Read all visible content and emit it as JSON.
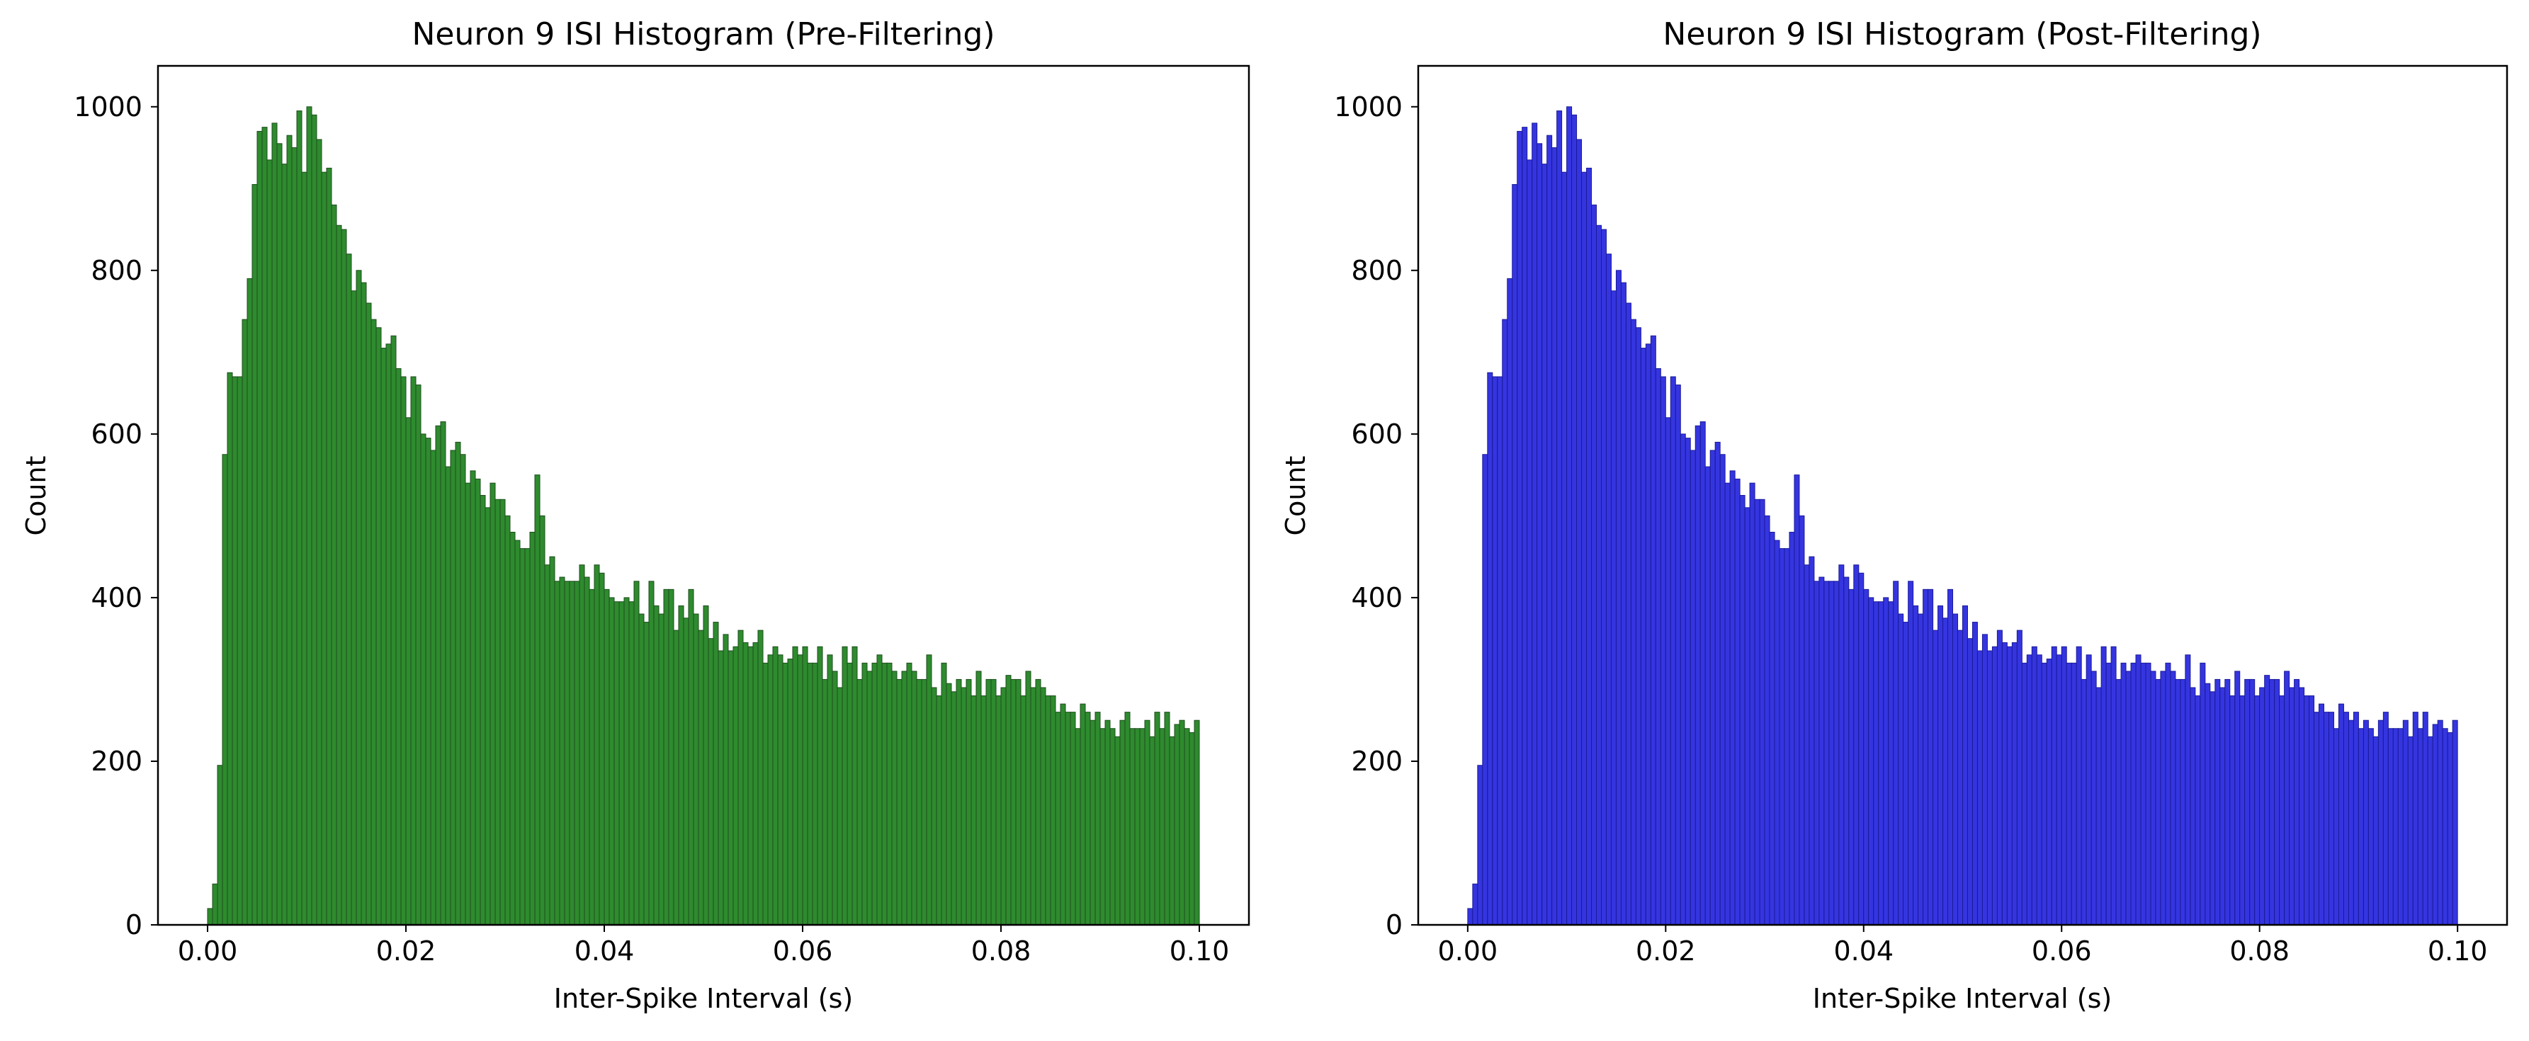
{
  "chart_data": [
    {
      "type": "bar",
      "title": "Neuron 9 ISI Histogram (Pre-Filtering)",
      "xlabel": "Inter-Spike Interval (s)",
      "ylabel": "Count",
      "xlim": [
        -0.005,
        0.105
      ],
      "ylim": [
        0,
        1050
      ],
      "x_ticks": [
        "0.00",
        "0.02",
        "0.04",
        "0.06",
        "0.08",
        "0.10"
      ],
      "y_ticks": [
        "0",
        "200",
        "400",
        "600",
        "800",
        "1000"
      ],
      "bin_range": [
        0,
        0.1
      ],
      "bin_count": 200,
      "fill_color": "#2e8b2e",
      "edge_color": "#1d4d1d",
      "values": [
        20,
        50,
        195,
        575,
        675,
        670,
        670,
        740,
        790,
        905,
        970,
        975,
        935,
        980,
        955,
        930,
        965,
        950,
        995,
        920,
        1000,
        990,
        960,
        920,
        925,
        880,
        855,
        850,
        820,
        775,
        800,
        785,
        760,
        740,
        730,
        705,
        710,
        720,
        680,
        670,
        620,
        670,
        660,
        600,
        595,
        580,
        610,
        615,
        560,
        580,
        590,
        575,
        540,
        555,
        545,
        525,
        510,
        540,
        520,
        520,
        500,
        480,
        470,
        460,
        460,
        480,
        550,
        500,
        440,
        450,
        420,
        425,
        420,
        420,
        420,
        440,
        425,
        410,
        440,
        430,
        410,
        400,
        395,
        395,
        400,
        395,
        420,
        380,
        370,
        420,
        390,
        380,
        410,
        410,
        360,
        390,
        375,
        410,
        380,
        360,
        390,
        350,
        370,
        335,
        355,
        335,
        340,
        360,
        345,
        340,
        345,
        360,
        320,
        330,
        340,
        330,
        320,
        325,
        340,
        330,
        340,
        320,
        320,
        340,
        300,
        330,
        310,
        290,
        340,
        320,
        340,
        300,
        320,
        310,
        320,
        330,
        320,
        320,
        310,
        300,
        310,
        320,
        310,
        300,
        300,
        330,
        290,
        280,
        320,
        295,
        285,
        300,
        290,
        300,
        280,
        310,
        280,
        300,
        300,
        280,
        290,
        305,
        300,
        300,
        280,
        310,
        290,
        300,
        290,
        280,
        280,
        260,
        270,
        260,
        260,
        240,
        270,
        260,
        250,
        260,
        240,
        250,
        240,
        230,
        250,
        260,
        240,
        240,
        240,
        250,
        230,
        260,
        240,
        260,
        230,
        245,
        250,
        240,
        235,
        250
      ]
    },
    {
      "type": "bar",
      "title": "Neuron 9 ISI Histogram (Post-Filtering)",
      "xlabel": "Inter-Spike Interval (s)",
      "ylabel": "Count",
      "xlim": [
        -0.005,
        0.105
      ],
      "ylim": [
        0,
        1050
      ],
      "x_ticks": [
        "0.00",
        "0.02",
        "0.04",
        "0.06",
        "0.08",
        "0.10"
      ],
      "y_ticks": [
        "0",
        "200",
        "400",
        "600",
        "800",
        "1000"
      ],
      "bin_range": [
        0,
        0.1
      ],
      "bin_count": 200,
      "fill_color": "#3535e0",
      "edge_color": "#1a1a9a",
      "values": [
        20,
        50,
        195,
        575,
        675,
        670,
        670,
        740,
        790,
        905,
        970,
        975,
        935,
        980,
        955,
        930,
        965,
        950,
        995,
        920,
        1000,
        990,
        960,
        920,
        925,
        880,
        855,
        850,
        820,
        775,
        800,
        785,
        760,
        740,
        730,
        705,
        710,
        720,
        680,
        670,
        620,
        670,
        660,
        600,
        595,
        580,
        610,
        615,
        560,
        580,
        590,
        575,
        540,
        555,
        545,
        525,
        510,
        540,
        520,
        520,
        500,
        480,
        470,
        460,
        460,
        480,
        550,
        500,
        440,
        450,
        420,
        425,
        420,
        420,
        420,
        440,
        425,
        410,
        440,
        430,
        410,
        400,
        395,
        395,
        400,
        395,
        420,
        380,
        370,
        420,
        390,
        380,
        410,
        410,
        360,
        390,
        375,
        410,
        380,
        360,
        390,
        350,
        370,
        335,
        355,
        335,
        340,
        360,
        345,
        340,
        345,
        360,
        320,
        330,
        340,
        330,
        320,
        325,
        340,
        330,
        340,
        320,
        320,
        340,
        300,
        330,
        310,
        290,
        340,
        320,
        340,
        300,
        320,
        310,
        320,
        330,
        320,
        320,
        310,
        300,
        310,
        320,
        310,
        300,
        300,
        330,
        290,
        280,
        320,
        295,
        285,
        300,
        290,
        300,
        280,
        310,
        280,
        300,
        300,
        280,
        290,
        305,
        300,
        300,
        280,
        310,
        290,
        300,
        290,
        280,
        280,
        260,
        270,
        260,
        260,
        240,
        270,
        260,
        250,
        260,
        240,
        250,
        240,
        230,
        250,
        260,
        240,
        240,
        240,
        250,
        230,
        260,
        240,
        260,
        230,
        245,
        250,
        240,
        235,
        250
      ]
    }
  ]
}
